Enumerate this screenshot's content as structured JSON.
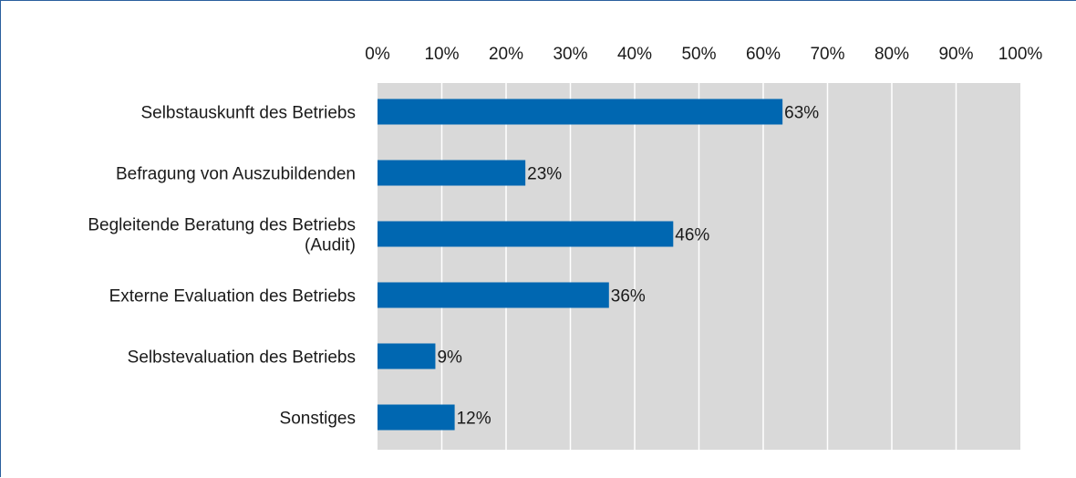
{
  "chart_data": {
    "type": "bar",
    "orientation": "horizontal",
    "categories": [
      [
        "Selbstauskunft des Betriebs"
      ],
      [
        "Befragung von Auszubildenden"
      ],
      [
        "Begleitende Beratung des Betriebs",
        "(Audit)"
      ],
      [
        "Externe Evaluation des Betriebs"
      ],
      [
        "Selbstevaluation des Betriebs"
      ],
      [
        "Sonstiges"
      ]
    ],
    "values": [
      63,
      23,
      46,
      36,
      9,
      12
    ],
    "data_labels": [
      "63%",
      "23%",
      "46%",
      "36%",
      "9%",
      "12%"
    ],
    "xticks": [
      "0%",
      "10%",
      "20%",
      "30%",
      "40%",
      "50%",
      "60%",
      "70%",
      "80%",
      "90%",
      "100%"
    ],
    "xlim": [
      0,
      100
    ],
    "x_axis_position": "top",
    "grid": true,
    "colors": {
      "bar": "#0067b1",
      "plot_background": "#d9d9d9",
      "gridline": "#ffffff",
      "frame": "#2a5f9e"
    }
  }
}
